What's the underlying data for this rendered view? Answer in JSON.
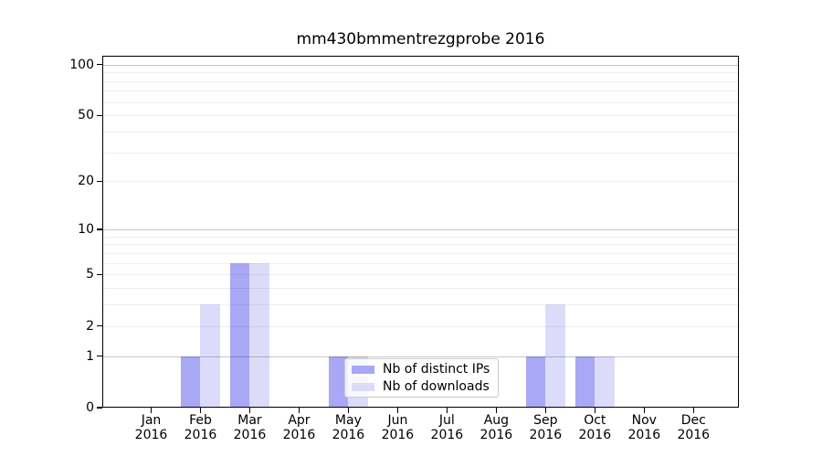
{
  "chart_data": {
    "type": "bar",
    "title": "mm430bmmentrezgprobe 2016",
    "categories": [
      "Jan 2016",
      "Feb 2016",
      "Mar 2016",
      "Apr 2016",
      "May 2016",
      "Jun 2016",
      "Jul 2016",
      "Aug 2016",
      "Sep 2016",
      "Oct 2016",
      "Nov 2016",
      "Dec 2016"
    ],
    "month_labels": [
      "Jan",
      "Feb",
      "Mar",
      "Apr",
      "May",
      "Jun",
      "Jul",
      "Aug",
      "Sep",
      "Oct",
      "Nov",
      "Dec"
    ],
    "year_label": "2016",
    "series": [
      {
        "name": "Nb of distinct IPs",
        "color": "#a8a8f6",
        "values": [
          0,
          1,
          6,
          0,
          1,
          0,
          0,
          0,
          1,
          1,
          0,
          0
        ]
      },
      {
        "name": "Nb of downloads",
        "color": "#dcdcfa",
        "values": [
          0,
          3,
          6,
          0,
          1,
          0,
          0,
          0,
          3,
          1,
          0,
          0
        ]
      }
    ],
    "yscale": "log(1+x)",
    "ylim": [
      0,
      113
    ],
    "ytick_values": [
      0,
      1,
      2,
      5,
      10,
      20,
      50,
      100
    ],
    "grid_major_values": [
      1,
      10,
      100
    ],
    "grid_minor_values": [
      2,
      3,
      4,
      5,
      6,
      7,
      8,
      9,
      20,
      30,
      40,
      50,
      60,
      70,
      80,
      90
    ],
    "grid": "on",
    "legend_position": "lower center",
    "xlabel": "",
    "ylabel": ""
  },
  "colors": {
    "background": "#ffffff",
    "axis": "#000000",
    "bar_distinct_ips": "#a8a8f6",
    "bar_downloads": "#dcdcfa",
    "grid_major": "#c8c8c8",
    "grid_minor": "#efefef",
    "legend_border": "#cccccc"
  }
}
